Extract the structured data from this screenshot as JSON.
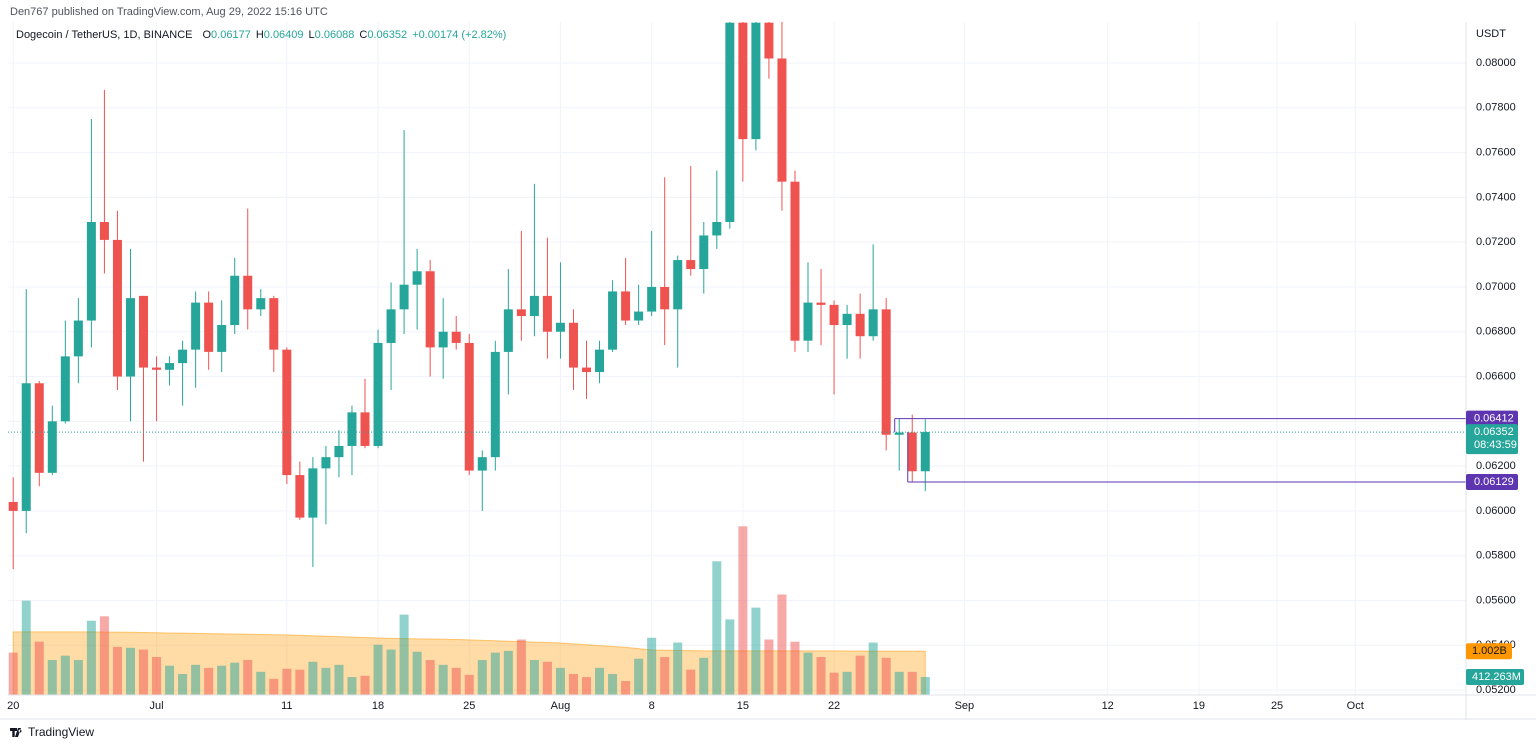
{
  "header": {
    "publisher": "Den767 published on TradingView.com, Aug 29, 2022 15:16 UTC",
    "brand": "TradingView"
  },
  "chart_data": {
    "type": "candlestick",
    "title": "Dogecoin / TetherUS, 1D, BINANCE",
    "ohlc_letters": [
      "O",
      "H",
      "L",
      "C"
    ],
    "change_label": "+0.00174 (+2.82%)",
    "ylabel": "USDT",
    "countdown": "08:43:59",
    "up_color": "#26a69a",
    "down_color": "#ef5350",
    "xlim": [
      -0.4,
      111.5
    ],
    "ylim": [
      0.05178,
      0.08183
    ],
    "grid": true,
    "xticks": [
      {
        "value": 0,
        "label": "20"
      },
      {
        "value": 11,
        "label": "Jul"
      },
      {
        "value": 21,
        "label": "11"
      },
      {
        "value": 28,
        "label": "18"
      },
      {
        "value": 35,
        "label": "25"
      },
      {
        "value": 42,
        "label": "Aug"
      },
      {
        "value": 49,
        "label": "8"
      },
      {
        "value": 56,
        "label": "15"
      },
      {
        "value": 63,
        "label": "22"
      },
      {
        "value": 73,
        "label": "Sep"
      },
      {
        "value": 84,
        "label": "12"
      },
      {
        "value": 91,
        "label": "19"
      },
      {
        "value": 97,
        "label": "25"
      },
      {
        "value": 103,
        "label": "Oct"
      }
    ],
    "yticks": [
      {
        "value": 0.052,
        "label": "0.05200"
      },
      {
        "value": 0.054,
        "label": "0.05400"
      },
      {
        "value": 0.056,
        "label": "0.05600"
      },
      {
        "value": 0.058,
        "label": "0.05800"
      },
      {
        "value": 0.06,
        "label": "0.06000"
      },
      {
        "value": 0.062,
        "label": "0.06200"
      },
      {
        "value": 0.064,
        "label": "0.06400"
      },
      {
        "value": 0.066,
        "label": "0.06600"
      },
      {
        "value": 0.068,
        "label": "0.06800"
      },
      {
        "value": 0.07,
        "label": "0.07000"
      },
      {
        "value": 0.072,
        "label": "0.07200"
      },
      {
        "value": 0.074,
        "label": "0.07400"
      },
      {
        "value": 0.076,
        "label": "0.07600"
      },
      {
        "value": 0.078,
        "label": "0.07800"
      },
      {
        "value": 0.08,
        "label": "0.08000"
      }
    ],
    "open": [
      0.0604,
      0.06,
      0.0657,
      0.0617,
      0.064,
      0.0669,
      0.0685,
      0.0729,
      0.0721,
      0.066,
      0.0696,
      0.0664,
      0.0663,
      0.0666,
      0.0672,
      0.0693,
      0.0671,
      0.0683,
      0.0705,
      0.069,
      0.0695,
      0.0672,
      0.0616,
      0.0597,
      0.0619,
      0.0624,
      0.0629,
      0.0644,
      0.0629,
      0.0675,
      0.069,
      0.0701,
      0.0707,
      0.0673,
      0.068,
      0.0675,
      0.0618,
      0.0624,
      0.0671,
      0.069,
      0.0687,
      0.0696,
      0.068,
      0.0684,
      0.0664,
      0.0662,
      0.0672,
      0.0698,
      0.0685,
      0.0689,
      0.07,
      0.069,
      0.0712,
      0.0708,
      0.0723,
      0.0729,
      0.0818,
      0.0766,
      0.0818,
      0.0802,
      0.0747,
      0.0676,
      0.0693,
      0.0692,
      0.0683,
      0.0688,
      0.0678,
      0.069,
      0.0634,
      0.0635,
      0.06177
    ],
    "high": [
      0.0615,
      0.0699,
      0.0658,
      0.0647,
      0.0685,
      0.0695,
      0.0775,
      0.0788,
      0.0734,
      0.0717,
      0.0696,
      0.0669,
      0.0669,
      0.0676,
      0.0698,
      0.0698,
      0.0694,
      0.0713,
      0.0735,
      0.0699,
      0.0696,
      0.0673,
      0.0622,
      0.0624,
      0.0629,
      0.0636,
      0.0647,
      0.0659,
      0.0681,
      0.0702,
      0.077,
      0.0717,
      0.0712,
      0.0695,
      0.0687,
      0.0679,
      0.0627,
      0.0676,
      0.0708,
      0.0725,
      0.0746,
      0.0722,
      0.0711,
      0.069,
      0.0676,
      0.0676,
      0.0703,
      0.0713,
      0.0701,
      0.0725,
      0.0749,
      0.0714,
      0.0754,
      0.0729,
      0.0752,
      0.082,
      0.0822,
      0.0825,
      0.0825,
      0.082,
      0.0752,
      0.0711,
      0.0708,
      0.0694,
      0.0692,
      0.0697,
      0.0719,
      0.0695,
      0.0641,
      0.0643,
      0.06409
    ],
    "low": [
      0.0574,
      0.059,
      0.0611,
      0.0616,
      0.0639,
      0.0657,
      0.0673,
      0.0706,
      0.0654,
      0.064,
      0.0622,
      0.064,
      0.0656,
      0.0647,
      0.0655,
      0.0663,
      0.0662,
      0.0679,
      0.0681,
      0.0687,
      0.0662,
      0.0612,
      0.0596,
      0.0575,
      0.0594,
      0.0615,
      0.0616,
      0.0628,
      0.0628,
      0.0654,
      0.0679,
      0.0681,
      0.066,
      0.0659,
      0.0672,
      0.0616,
      0.06,
      0.0618,
      0.0652,
      0.0676,
      0.0678,
      0.0668,
      0.0668,
      0.0654,
      0.065,
      0.0657,
      0.0671,
      0.0683,
      0.0683,
      0.0687,
      0.0674,
      0.0664,
      0.0705,
      0.0697,
      0.0717,
      0.0726,
      0.0747,
      0.0761,
      0.0793,
      0.0734,
      0.0671,
      0.0671,
      0.0674,
      0.0652,
      0.0668,
      0.0668,
      0.0676,
      0.0627,
      0.0618,
      0.0613,
      0.06088
    ],
    "close": [
      0.06,
      0.0657,
      0.0617,
      0.064,
      0.0669,
      0.0685,
      0.0729,
      0.0721,
      0.066,
      0.0695,
      0.0664,
      0.0663,
      0.0666,
      0.0672,
      0.0693,
      0.0671,
      0.0683,
      0.0705,
      0.069,
      0.0695,
      0.0672,
      0.0616,
      0.0597,
      0.0619,
      0.0624,
      0.0629,
      0.0644,
      0.0629,
      0.0675,
      0.069,
      0.0701,
      0.0707,
      0.0673,
      0.068,
      0.0675,
      0.0618,
      0.0624,
      0.0671,
      0.069,
      0.0687,
      0.0696,
      0.068,
      0.0684,
      0.0664,
      0.0662,
      0.0672,
      0.0698,
      0.0685,
      0.0689,
      0.07,
      0.069,
      0.0712,
      0.0708,
      0.0723,
      0.0729,
      0.0818,
      0.0766,
      0.0818,
      0.0802,
      0.0747,
      0.0676,
      0.0693,
      0.0692,
      0.0683,
      0.0688,
      0.0678,
      0.069,
      0.0634,
      0.0635,
      0.06177,
      0.06352
    ],
    "price_lines": [
      0.06412,
      0.06129
    ],
    "price_line_color": "#5e35b1",
    "volume": {
      "vlim": [
        0,
        15400
      ],
      "values": [
        970,
        2160,
        1220,
        800,
        900,
        800,
        1700,
        1800,
        1100,
        1080,
        1040,
        870,
        670,
        480,
        690,
        620,
        670,
        740,
        800,
        530,
        370,
        600,
        580,
        760,
        620,
        690,
        410,
        440,
        1150,
        1040,
        1840,
        990,
        800,
        690,
        620,
        460,
        800,
        970,
        1010,
        1270,
        800,
        760,
        620,
        480,
        410,
        620,
        480,
        320,
        830,
        1310,
        870,
        1200,
        580,
        850,
        3060,
        1730,
        3860,
        2000,
        1270,
        2300,
        1220,
        970,
        870,
        510,
        530,
        900,
        1200,
        850,
        530,
        530,
        412.263
      ],
      "last_label": "412.263M",
      "ma": [
        1445,
        1445,
        1445,
        1445,
        1445,
        1445,
        1445,
        1440,
        1440,
        1435,
        1430,
        1425,
        1420,
        1415,
        1410,
        1405,
        1400,
        1395,
        1390,
        1385,
        1380,
        1375,
        1365,
        1355,
        1345,
        1335,
        1325,
        1315,
        1305,
        1295,
        1290,
        1285,
        1280,
        1275,
        1270,
        1260,
        1250,
        1240,
        1230,
        1220,
        1210,
        1200,
        1190,
        1170,
        1150,
        1130,
        1110,
        1090,
        1060,
        1030,
        1025,
        1020,
        1015,
        1010,
        1010,
        1010,
        1010,
        1010,
        1010,
        1010,
        1010,
        1010,
        1010,
        1010,
        1008,
        1006,
        1005,
        1004,
        1003,
        1003,
        1002
      ],
      "ma_last_label": "1.002B",
      "ma_color": "#ff9800"
    }
  }
}
